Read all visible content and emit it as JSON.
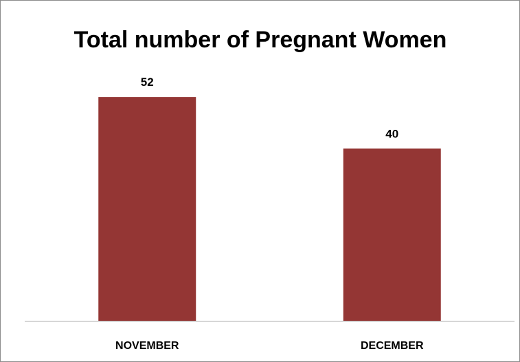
{
  "chart_data": {
    "type": "bar",
    "title": "Total number of Pregnant Women",
    "categories": [
      "NOVEMBER",
      "DECEMBER"
    ],
    "values": [
      52,
      40
    ],
    "xlabel": "",
    "ylabel": "",
    "ylim": [
      0,
      60
    ],
    "grid": false,
    "legend": "none",
    "colors": {
      "bar": "#943634",
      "axis": "#a6a6a6",
      "border": "#8c8c8c"
    }
  }
}
